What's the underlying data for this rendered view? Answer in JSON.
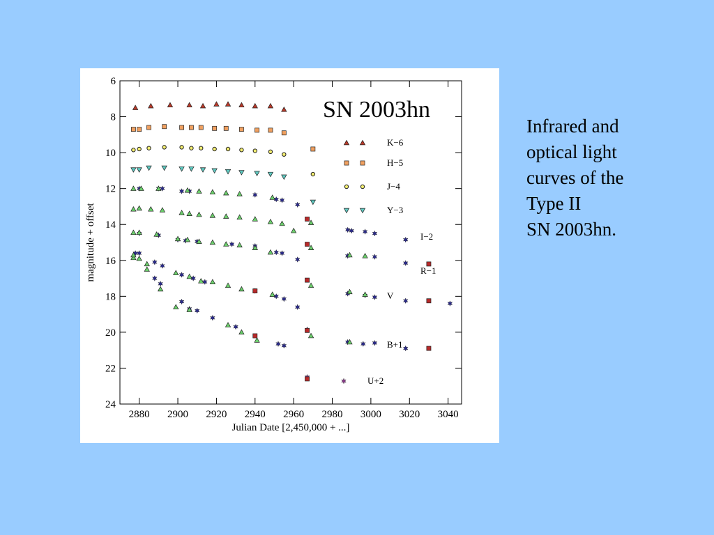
{
  "slide_text": [
    "Infrared and",
    "optical light",
    "curves of the",
    "Type II",
    "SN 2003hn."
  ],
  "chart_data": {
    "type": "scatter",
    "title": "SN 2003hn",
    "x_label": "Julian Date [2,450,000 + ...]",
    "y_label": "magnitude + offset",
    "xlim": [
      2870,
      3047
    ],
    "ylim": [
      24,
      6
    ],
    "xticks": [
      2880,
      2900,
      2920,
      2940,
      2960,
      2980,
      3000,
      3020,
      3040
    ],
    "yticks": [
      6,
      8,
      10,
      12,
      14,
      16,
      18,
      20,
      22,
      24
    ],
    "series": [
      {
        "name": "K−6",
        "color": "#b83a2a",
        "marker": "triangle",
        "x": [
          2878,
          2886,
          2896,
          2906,
          2913,
          2920,
          2926,
          2933,
          2940,
          2948,
          2955
        ],
        "values": [
          7.5,
          7.4,
          7.35,
          7.35,
          7.4,
          7.3,
          7.3,
          7.35,
          7.4,
          7.4,
          7.6
        ]
      },
      {
        "name": "H−5",
        "color": "#f0a060",
        "marker": "square",
        "x": [
          2877,
          2880,
          2885,
          2893,
          2902,
          2907,
          2912,
          2919,
          2925,
          2933,
          2941,
          2948,
          2955,
          2970
        ],
        "values": [
          8.7,
          8.7,
          8.6,
          8.55,
          8.6,
          8.6,
          8.6,
          8.65,
          8.65,
          8.7,
          8.75,
          8.75,
          8.9,
          9.8
        ]
      },
      {
        "name": "J−4",
        "color": "#f4ee70",
        "marker": "circle",
        "x": [
          2877,
          2880,
          2885,
          2893,
          2902,
          2907,
          2912,
          2919,
          2926,
          2933,
          2940,
          2948,
          2955,
          2970
        ],
        "values": [
          9.85,
          9.8,
          9.75,
          9.7,
          9.7,
          9.75,
          9.75,
          9.8,
          9.8,
          9.85,
          9.9,
          9.95,
          10.1,
          11.2
        ]
      },
      {
        "name": "Y−3",
        "color": "#5fc8c0",
        "marker": "downtriangle",
        "x": [
          2877,
          2880,
          2885,
          2893,
          2902,
          2907,
          2913,
          2919,
          2926,
          2933,
          2941,
          2948,
          2955,
          2970
        ],
        "values": [
          10.95,
          10.95,
          10.85,
          10.85,
          10.9,
          10.9,
          10.95,
          11.0,
          11.05,
          11.1,
          11.15,
          11.2,
          11.35,
          12.75
        ]
      },
      {
        "name": "I−2",
        "color": "#2a2a8a",
        "marker": "star",
        "x": [
          2880,
          2890,
          2892,
          2902,
          2906,
          2940,
          2951,
          2954,
          2962,
          2988,
          2990,
          2997,
          3002,
          3018
        ],
        "values": [
          12.0,
          12.0,
          12.0,
          12.15,
          12.15,
          12.35,
          12.6,
          12.65,
          12.9,
          14.3,
          14.35,
          14.4,
          14.5,
          14.85
        ]
      },
      {
        "name": "R−1",
        "color": "#2a2a8a",
        "marker": "star",
        "x": [
          2880,
          2890,
          2900,
          2904,
          2910,
          2928,
          2940,
          2951,
          2954,
          2962,
          2988,
          3002,
          3018
        ],
        "values": [
          14.5,
          14.6,
          14.85,
          14.9,
          14.95,
          15.1,
          15.2,
          15.55,
          15.6,
          15.95,
          15.75,
          15.8,
          16.15
        ]
      },
      {
        "name": "V",
        "color": "#2a2a8a",
        "marker": "star",
        "x": [
          2878,
          2888,
          2892,
          2902,
          2908,
          2914,
          2940,
          2951,
          2955,
          2962,
          2967,
          2988,
          2997,
          3002,
          3018,
          3041
        ],
        "values": [
          15.6,
          16.1,
          16.3,
          16.8,
          17.0,
          17.2,
          17.7,
          18.0,
          18.15,
          18.6,
          19.85,
          17.85,
          17.95,
          18.05,
          18.25,
          18.4
        ]
      },
      {
        "name": "B+1",
        "color": "#2a2a8a",
        "marker": "star",
        "x": [
          2880,
          2888,
          2891,
          2902,
          2906,
          2910,
          2918,
          2930,
          2952,
          2955,
          2988,
          2996,
          3002,
          3018
        ],
        "values": [
          15.6,
          17.0,
          17.3,
          18.3,
          18.7,
          18.8,
          19.2,
          19.7,
          20.65,
          20.75,
          20.55,
          20.65,
          20.6,
          20.9
        ]
      },
      {
        "name": "U+2",
        "color": "#8a3a8a",
        "marker": "star",
        "x": [
          2967
        ],
        "values": [
          22.5
        ]
      },
      {
        "color": "#6ccf6c",
        "marker": "triangle",
        "x": [
          2877,
          2881,
          2890,
          2905,
          2911,
          2918,
          2925,
          2932,
          2949,
          2969,
          2877,
          2880,
          2886,
          2892,
          2902,
          2906,
          2911,
          2918,
          2925,
          2932,
          2940,
          2948,
          2954,
          2960,
          2969,
          2989,
          2997,
          2877,
          2880,
          2889,
          2900,
          2905,
          2911,
          2918,
          2925,
          2932,
          2940,
          2948,
          2969,
          2989,
          2997,
          2877,
          2880,
          2884,
          2891,
          2899,
          2906,
          2912,
          2918,
          2926,
          2933,
          2949,
          2877,
          2884,
          2899,
          2906,
          2926,
          2933,
          2941,
          2969,
          2989
        ],
        "values": [
          12.0,
          12.0,
          12.0,
          12.1,
          12.15,
          12.2,
          12.25,
          12.3,
          12.5,
          13.9,
          13.15,
          13.1,
          13.15,
          13.2,
          13.35,
          13.4,
          13.45,
          13.5,
          13.55,
          13.6,
          13.7,
          13.85,
          13.95,
          14.35,
          15.3,
          15.7,
          15.75,
          14.45,
          14.45,
          14.55,
          14.8,
          14.85,
          14.95,
          15.0,
          15.1,
          15.15,
          15.3,
          15.55,
          17.4,
          17.75,
          17.9,
          15.85,
          15.9,
          16.2,
          17.6,
          16.7,
          16.9,
          17.15,
          17.2,
          17.4,
          17.6,
          17.9,
          15.7,
          16.5,
          18.6,
          18.75,
          19.6,
          20.0,
          20.45,
          20.2,
          20.55
        ]
      },
      {
        "color": "#b82a2a",
        "marker": "square",
        "x": [
          2967,
          2967,
          2967,
          2967,
          2967,
          2940,
          2940,
          3030,
          3030,
          3030
        ],
        "values": [
          13.7,
          15.1,
          17.1,
          19.9,
          22.6,
          17.7,
          20.2,
          16.2,
          18.25,
          20.9
        ]
      }
    ]
  }
}
